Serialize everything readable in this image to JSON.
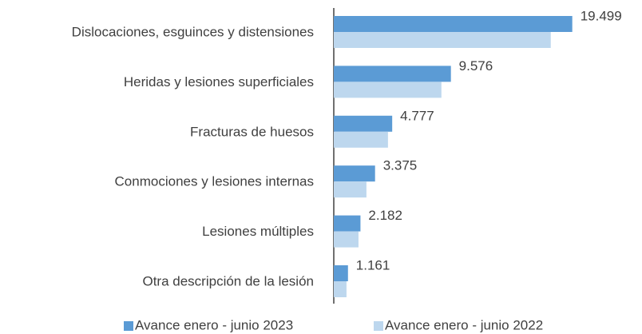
{
  "chart_data": {
    "type": "barh",
    "categories": [
      "Dislocaciones, esguinces y distensiones",
      "Heridas y lesiones superficiales",
      "Fracturas de huesos",
      "Conmociones y lesiones internas",
      "Lesiones múltiples",
      "Otra descripción de la lesión"
    ],
    "series": [
      {
        "name": "Avance enero - junio 2023",
        "color": "#5b9bd5",
        "values": [
          19499,
          9576,
          4777,
          3375,
          2182,
          1161
        ],
        "value_labels": [
          "19.499",
          "9.576",
          "4.777",
          "3.375",
          "2.182",
          "1.161"
        ]
      },
      {
        "name": "Avance enero - junio 2022",
        "color": "#bdd7ee",
        "values": [
          17740,
          8800,
          4430,
          2670,
          2020,
          1040
        ]
      }
    ],
    "xlim": [
      0,
      22000
    ],
    "legend": "bottom"
  }
}
